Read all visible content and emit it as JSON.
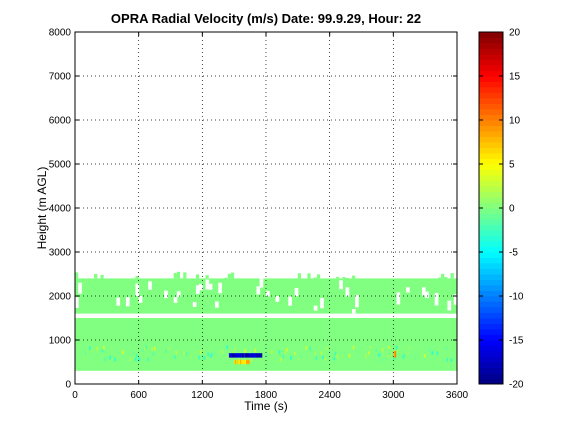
{
  "chart_data": {
    "type": "heatmap",
    "title": "OPRA Radial Velocity (m/s)  Date: 99.9.29, Hour: 22",
    "xlabel": "Time (s)",
    "ylabel": "Height (m AGL)",
    "xlim": [
      0,
      3600
    ],
    "ylim": [
      0,
      8000
    ],
    "xticks": [
      "0",
      "600",
      "1200",
      "1800",
      "2400",
      "3000",
      "3600"
    ],
    "yticks": [
      "0",
      "1000",
      "2000",
      "3000",
      "4000",
      "5000",
      "6000",
      "7000",
      "8000"
    ],
    "grid": true,
    "colorbar": {
      "min": -20,
      "max": 20,
      "ticks": [
        "20",
        "15",
        "10",
        "5",
        "0",
        "-5",
        "-10",
        "-15",
        "-20"
      ],
      "colormap": "jet"
    },
    "dominant_value": 0,
    "bands": [
      {
        "y_bottom": 300,
        "y_top": 1500,
        "value": 0
      },
      {
        "y_bottom": 1600,
        "y_top": 2400,
        "value": 0
      }
    ],
    "notable_cells": [
      {
        "t_start": 1450,
        "t_end": 1760,
        "h_bottom": 600,
        "h_top": 700,
        "value": -17
      },
      {
        "t_start": 1500,
        "t_end": 1640,
        "h_bottom": 450,
        "h_top": 550,
        "value": 6
      },
      {
        "t_start": 3000,
        "t_end": 3020,
        "h_bottom": 600,
        "h_top": 750,
        "value": 10
      }
    ]
  }
}
